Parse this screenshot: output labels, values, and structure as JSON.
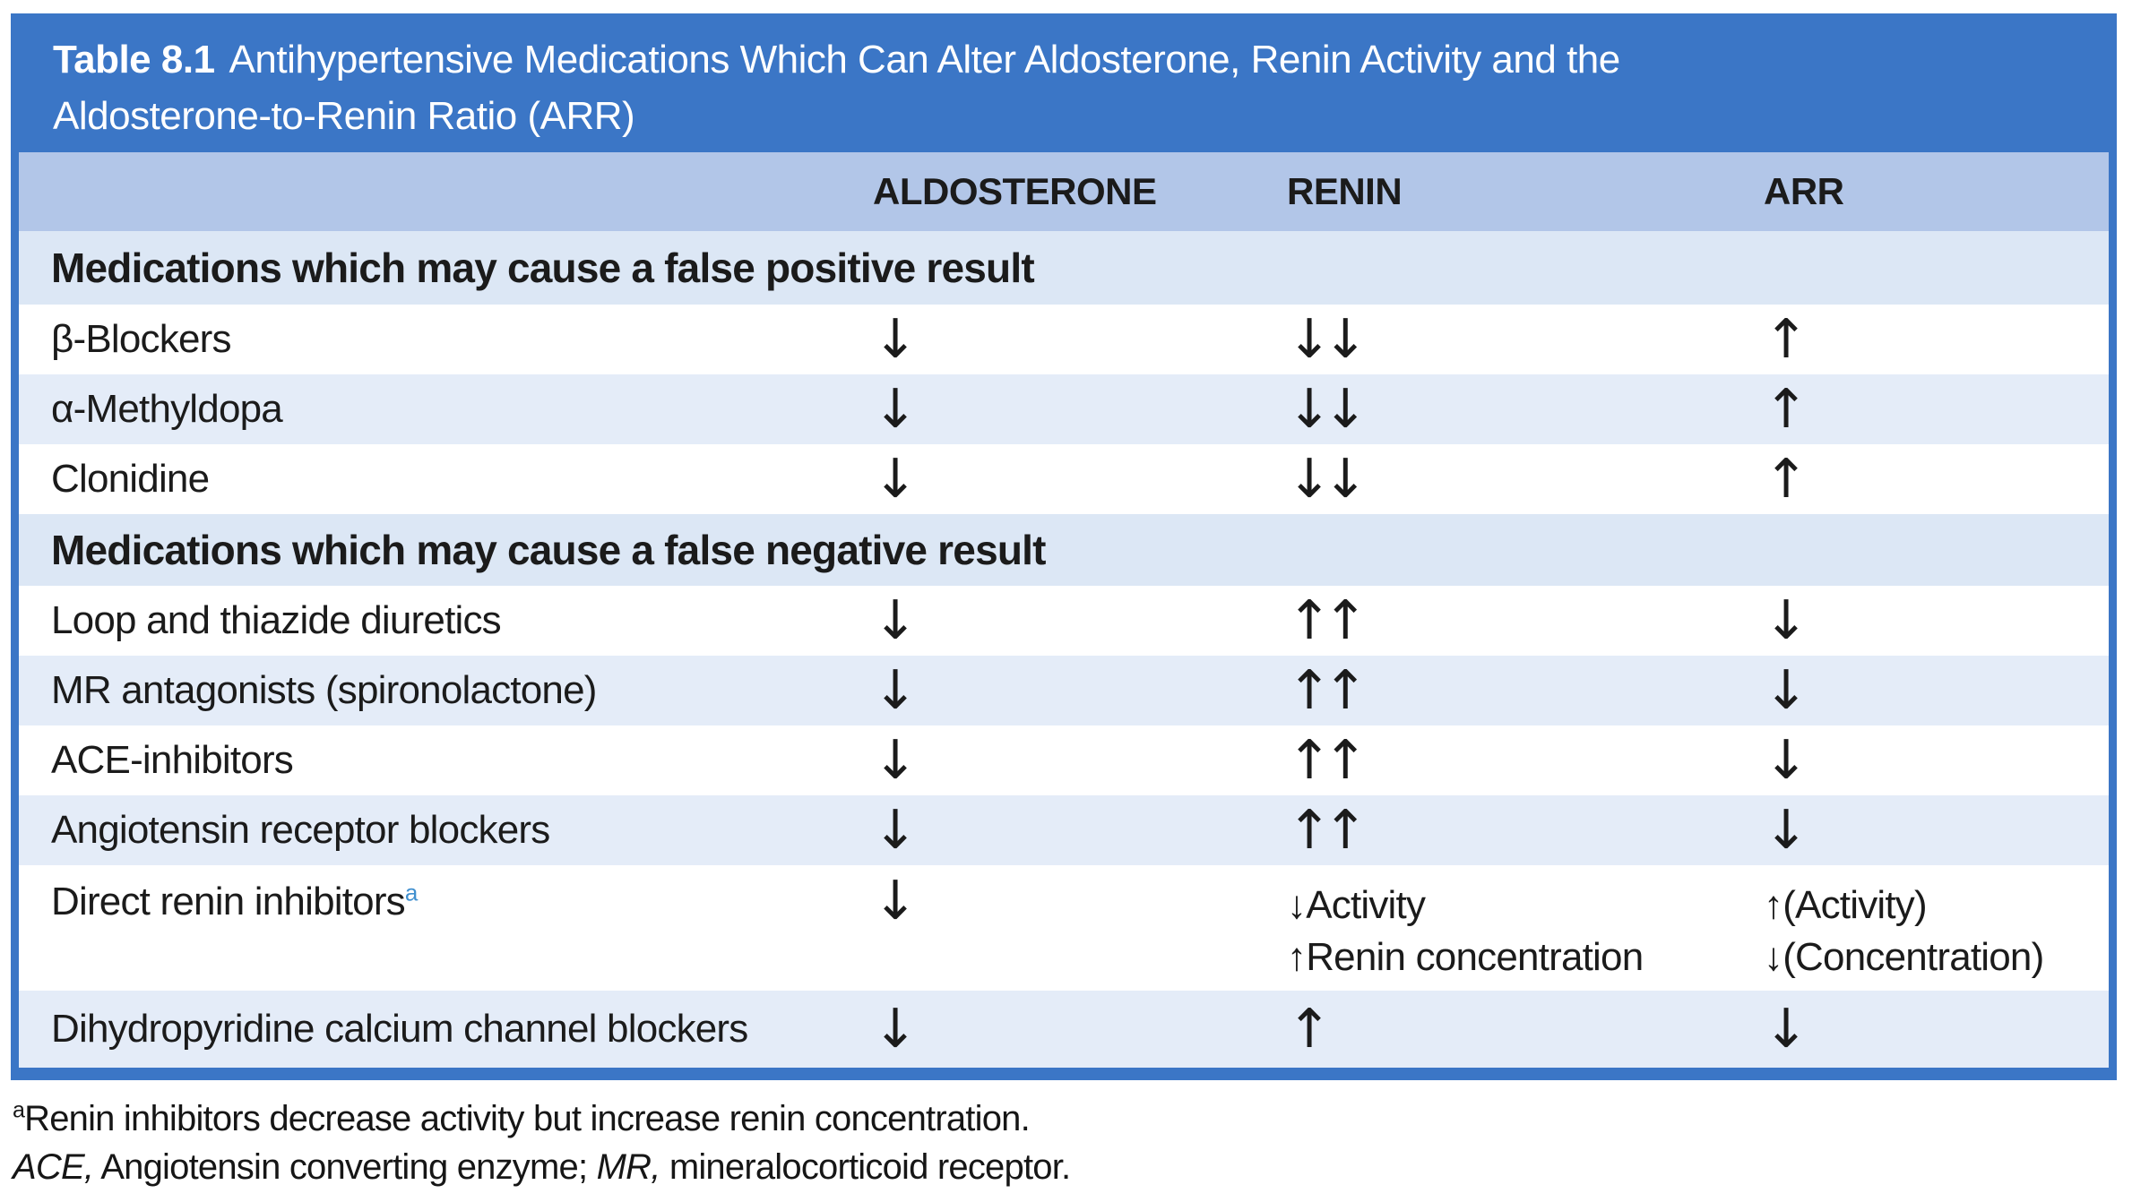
{
  "table": {
    "number": "Table 8.1",
    "title": "Antihypertensive Medications Which Can Alter Aldosterone, Renin Activity and the Aldosterone-to-Renin Ratio (ARR)",
    "columns": {
      "aldosterone": "ALDOSTERONE",
      "renin": "RENIN",
      "arr": "ARR"
    },
    "sections": [
      {
        "header": "Medications which may cause a false positive result",
        "rows": [
          {
            "name": "β-Blockers",
            "aldosterone": "↓",
            "renin": "↓↓",
            "arr": "↑"
          },
          {
            "name": "α-Methyldopa",
            "aldosterone": "↓",
            "renin": "↓↓",
            "arr": "↑"
          },
          {
            "name": "Clonidine",
            "aldosterone": "↓",
            "renin": "↓↓",
            "arr": "↑"
          }
        ]
      },
      {
        "header": "Medications which may cause a false negative result",
        "rows": [
          {
            "name": "Loop and thiazide diuretics",
            "aldosterone": "↓",
            "renin": "↑↑",
            "arr": "↓"
          },
          {
            "name": "MR antagonists (spironolactone)",
            "aldosterone": "↓",
            "renin": "↑↑",
            "arr": "↓"
          },
          {
            "name": "ACE-inhibitors",
            "aldosterone": "↓",
            "renin": "↑↑",
            "arr": "↓"
          },
          {
            "name": "Angiotensin receptor blockers",
            "aldosterone": "↓",
            "renin": "↑↑",
            "arr": "↓"
          },
          {
            "name": "Direct renin inhibitors",
            "footnote_marker": "a",
            "aldosterone": "↓",
            "renin": "↓Activity\n↑Renin concentration",
            "arr": "↑(Activity)\n↓(Concentration)"
          },
          {
            "name": "Dihydropyridine calcium channel blockers",
            "aldosterone": "↓",
            "renin": "↑",
            "arr": "↓"
          }
        ]
      }
    ]
  },
  "footnotes": {
    "note_a": {
      "marker": "a",
      "text": "Renin inhibitors decrease activity but increase renin concentration."
    },
    "abbreviations": {
      "term1": "ACE,",
      "def1": " Angiotensin converting enzyme; ",
      "term2": "MR,",
      "def2": " mineralocorticoid receptor."
    }
  },
  "colors": {
    "title_bar_blue": "#3b76c6",
    "header_band_blue": "#b2c6e8",
    "section_row_blue": "#dce7f5",
    "alt_row_blue": "#e4ecf8",
    "footnote_marker_blue": "#4190cf"
  }
}
